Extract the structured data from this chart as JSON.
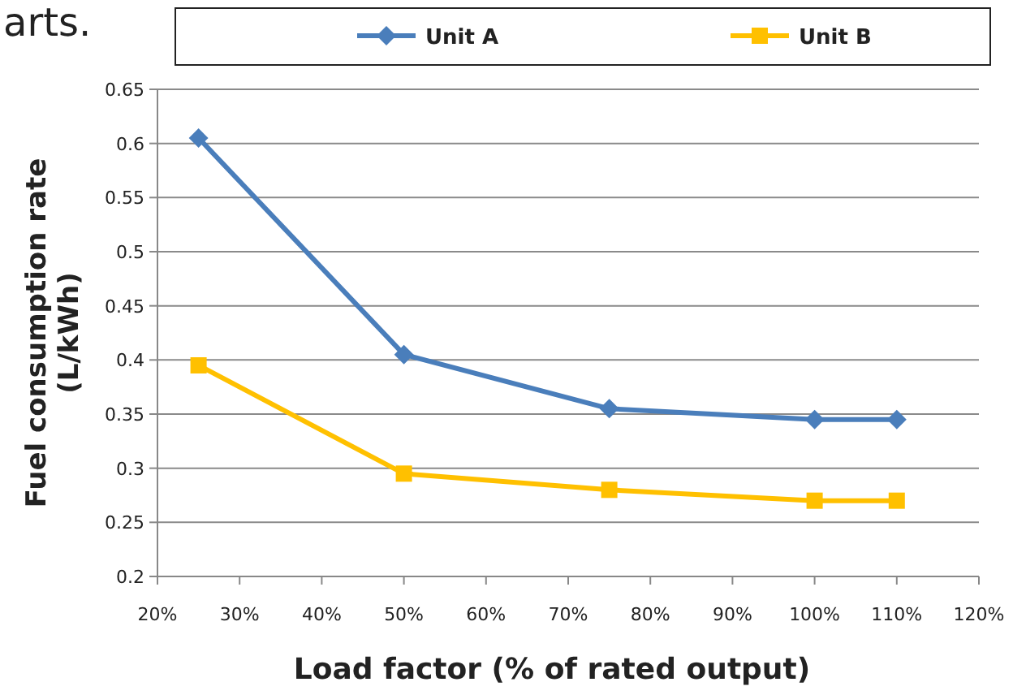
{
  "chart_data": {
    "type": "line",
    "xlabel": "Load factor (% of rated output)",
    "ylabel": "Fuel consumption rate\n(L/kWh)",
    "annotations": [
      "arts."
    ],
    "x": [
      25,
      50,
      75,
      100,
      110
    ],
    "series": [
      {
        "name": "Unit A",
        "color": "#4a7ebb",
        "marker": "diamond",
        "values": [
          0.605,
          0.405,
          0.355,
          0.345,
          0.345
        ]
      },
      {
        "name": "Unit B",
        "color": "#ffc000",
        "marker": "square",
        "values": [
          0.395,
          0.295,
          0.28,
          0.27,
          0.27
        ]
      }
    ],
    "xlim": [
      20,
      120
    ],
    "xticks": [
      {
        "value": 20,
        "label": "20%"
      },
      {
        "value": 30,
        "label": "30%"
      },
      {
        "value": 40,
        "label": "40%"
      },
      {
        "value": 50,
        "label": "50%"
      },
      {
        "value": 60,
        "label": "60%"
      },
      {
        "value": 70,
        "label": "70%"
      },
      {
        "value": 80,
        "label": "80%"
      },
      {
        "value": 90,
        "label": "90%"
      },
      {
        "value": 100,
        "label": "100%"
      },
      {
        "value": 110,
        "label": "110%"
      },
      {
        "value": 120,
        "label": "120%"
      }
    ],
    "ylim": [
      0.2,
      0.65
    ],
    "yticks": [
      0.2,
      0.25,
      0.3,
      0.35,
      0.4,
      0.45,
      0.5,
      0.55,
      0.6,
      0.65
    ],
    "grid": "y",
    "legend": "top",
    "line_style": "solid"
  }
}
